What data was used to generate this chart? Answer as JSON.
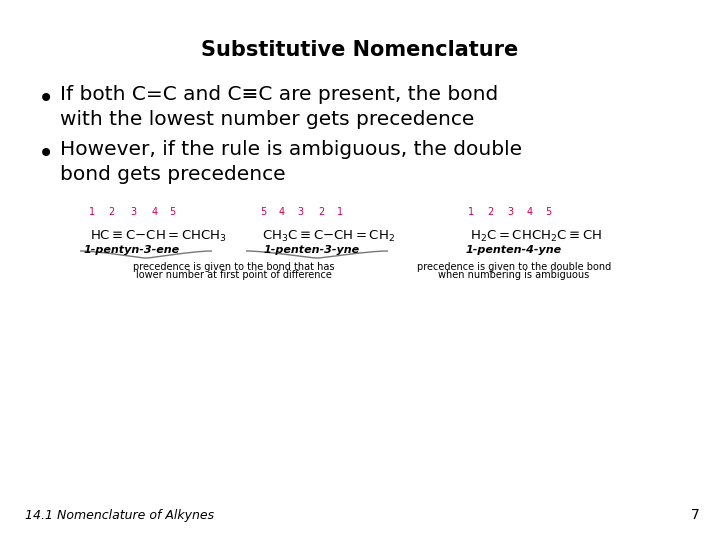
{
  "title": "Substitutive Nomenclature",
  "bullet1_line1": "If both C=C and C≡C are present, the bond",
  "bullet1_line2": "with the lowest number gets precedence",
  "bullet2_line1": "However, if the rule is ambiguous, the double",
  "bullet2_line2": "bond gets precedence",
  "footer": "14.1 Nomenclature of Alkynes",
  "page_number": "7",
  "bg_color": "#ffffff",
  "title_color": "#000000",
  "text_color": "#000000",
  "pink_color": "#cc0055",
  "gray_color": "#888888",
  "footer_color": "#000000",
  "mol1_formula": "HC≡C−CH=CHCH₃",
  "mol2_formula": "CH₃C≡C−CH=CH₂",
  "mol3_formula": "H₂C=CHCH₂C≡CH",
  "label1": "1-pentyn-3-ene",
  "label2": "1-penten-3-yne",
  "label3": "1-penten-4-yne",
  "note1_line1": "precedence is given to the bond that has",
  "note1_line2": "lower number at first point of difference",
  "note2_line1": "precedence is given to the double bond",
  "note2_line2": "when numbering is ambiguous",
  "nums_left": [
    "1",
    "2",
    "3",
    "4",
    "5"
  ],
  "nums_mid": [
    "5",
    "4",
    "3",
    "2",
    "1"
  ],
  "nums_right": [
    "1",
    "2",
    "3",
    "4",
    "5"
  ]
}
